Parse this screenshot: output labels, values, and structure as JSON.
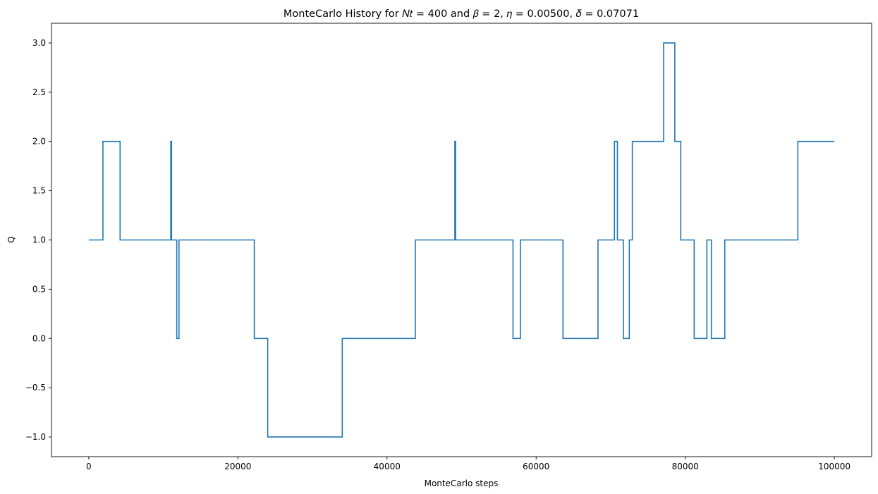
{
  "chart_data": {
    "type": "line",
    "step": true,
    "title": "MonteCarlo History for 𝑁𝑡 = 400 and  𝛽 = 2, 𝜂 = 0.00500, 𝛿 = 0.07071",
    "xlabel": "MonteCarlo steps",
    "ylabel": "Q",
    "xlim": [
      -5000,
      105000
    ],
    "ylim": [
      -1.2,
      3.2
    ],
    "grid": false,
    "line_color": "#1f77b4",
    "x_ticks": [
      {
        "value": 0,
        "label": "0"
      },
      {
        "value": 20000,
        "label": "20000"
      },
      {
        "value": 40000,
        "label": "40000"
      },
      {
        "value": 60000,
        "label": "60000"
      },
      {
        "value": 80000,
        "label": "80000"
      },
      {
        "value": 100000,
        "label": "100000"
      }
    ],
    "y_ticks": [
      {
        "value": -1.0,
        "label": "−1.0"
      },
      {
        "value": -0.5,
        "label": "−0.5"
      },
      {
        "value": 0.0,
        "label": "0.0"
      },
      {
        "value": 0.5,
        "label": "0.5"
      },
      {
        "value": 1.0,
        "label": "1.0"
      },
      {
        "value": 1.5,
        "label": "1.5"
      },
      {
        "value": 2.0,
        "label": "2.0"
      },
      {
        "value": 2.5,
        "label": "2.5"
      },
      {
        "value": 3.0,
        "label": "3.0"
      }
    ],
    "series": [
      {
        "x": [
          0,
          1900,
          4200,
          11000,
          11100,
          11300,
          11800,
          12100,
          22200,
          24000,
          34000,
          43800,
          49100,
          49200,
          56900,
          57900,
          63600,
          68300,
          70500,
          70900,
          71700,
          72500,
          72900,
          77100,
          78600,
          79400,
          81200,
          82900,
          83500,
          85300,
          95100,
          100000
        ],
        "y": [
          1,
          2,
          1,
          2,
          1,
          1,
          0,
          1,
          0,
          -1,
          0,
          1,
          2,
          1,
          0,
          1,
          0,
          1,
          2,
          1,
          0,
          1,
          2,
          3,
          2,
          1,
          0,
          1,
          0,
          1,
          2,
          2
        ]
      }
    ]
  }
}
